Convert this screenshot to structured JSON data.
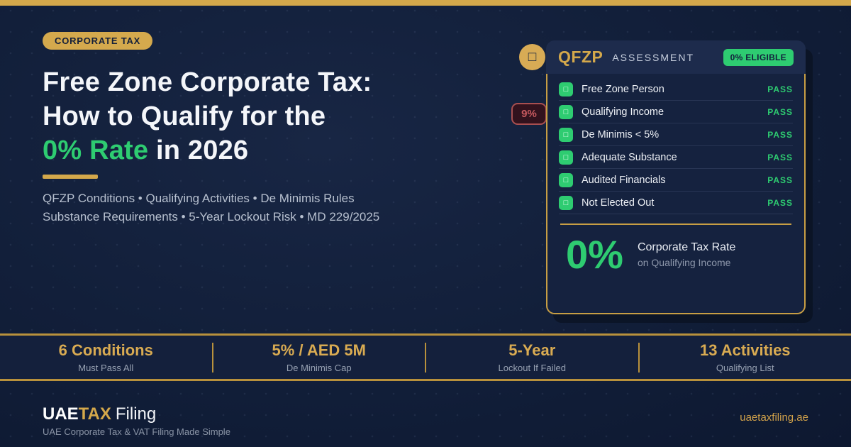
{
  "colors": {
    "background": "#101c35",
    "gold_accent": "#d4a84b",
    "green_accent": "#2ecc71",
    "red_accent": "#a84f50",
    "card_header_bg": "#1d2b4c",
    "card_body_bg": "#15223f",
    "stats_band_bg": "#14203c"
  },
  "top_badge": "CORPORATE TAX",
  "headline": {
    "line1": "Free Zone Corporate Tax:",
    "line2": "How to Qualify for the",
    "line3_highlight": "0% Rate",
    "line3_rest": " in 2026"
  },
  "subtitle": {
    "line1": "QFZP Conditions  •  Qualifying Activities  •  De Minimis Rules",
    "line2": "Substance Requirements  •  5-Year Lockout Risk  •  MD 229/2025"
  },
  "floating": {
    "doc_icon_glyph": "□",
    "rate9_badge": "9%"
  },
  "card": {
    "title": "QFZP",
    "subtitle": "ASSESSMENT",
    "status_badge": "0% ELIGIBLE",
    "check_icon_glyph": "□",
    "rows": [
      {
        "label": "Free Zone Person",
        "status": "PASS"
      },
      {
        "label": "Qualifying Income",
        "status": "PASS"
      },
      {
        "label": "De Minimis < 5%",
        "status": "PASS"
      },
      {
        "label": "Adequate Substance",
        "status": "PASS"
      },
      {
        "label": "Audited Financials",
        "status": "PASS"
      },
      {
        "label": "Not Elected Out",
        "status": "PASS"
      }
    ],
    "rate": {
      "value": "0%",
      "label": "Corporate Tax Rate",
      "sublabel": "on Qualifying Income"
    }
  },
  "stats": [
    {
      "value": "6 Conditions",
      "label": "Must Pass All"
    },
    {
      "value": "5% / AED 5M",
      "label": "De Minimis Cap"
    },
    {
      "value": "5-Year",
      "label": "Lockout If Failed"
    },
    {
      "value": "13 Activities",
      "label": "Qualifying List"
    }
  ],
  "footer": {
    "brand_uae": "UAE",
    "brand_tax": "TAX",
    "brand_filing": "Filing",
    "tagline": "UAE Corporate Tax & VAT Filing Made Simple",
    "website": "uaetaxfiling.ae"
  }
}
